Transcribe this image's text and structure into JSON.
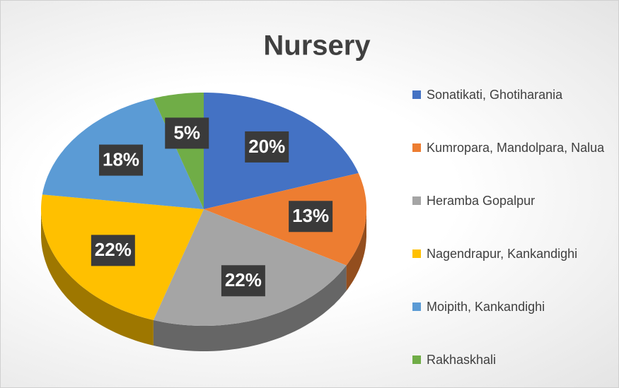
{
  "chart_data": {
    "type": "pie",
    "title": "Nursery",
    "categories": [
      "Sonatikati, Ghotiharania",
      "Kumropara, Mandolpara, Nalua",
      "Heramba Gopalpur",
      "Nagendrapur, Kankandighi",
      "Moipith, Kankandighi",
      "Rakhaskhali"
    ],
    "values": [
      20,
      13,
      22,
      22,
      18,
      5
    ],
    "value_labels": [
      "20%",
      "13%",
      "22%",
      "22%",
      "18%",
      "5%"
    ],
    "colors": [
      "#4472c4",
      "#ed7d31",
      "#a5a5a5",
      "#ffc000",
      "#5b9bd5",
      "#70ad47"
    ],
    "legend": "right"
  }
}
